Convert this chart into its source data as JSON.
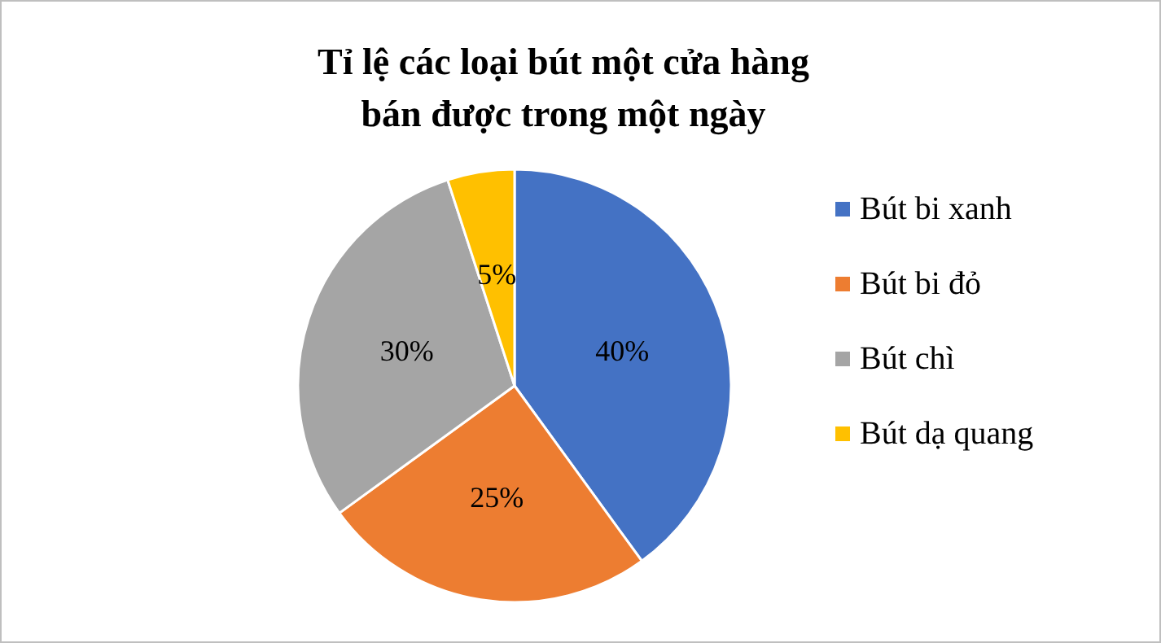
{
  "chart_data": {
    "type": "pie",
    "title": "Tỉ lệ các loại bút một cửa hàng\nbán được trong một ngày",
    "categories": [
      "Bút bi xanh",
      "Bút bi đỏ",
      "Bút chì",
      "Bút dạ quang"
    ],
    "values": [
      40,
      25,
      30,
      5
    ],
    "value_labels": [
      "40%",
      "25%",
      "30%",
      "5%"
    ],
    "colors": [
      "#4472c4",
      "#ed7d31",
      "#a5a5a5",
      "#ffc000"
    ],
    "legend": "right"
  }
}
